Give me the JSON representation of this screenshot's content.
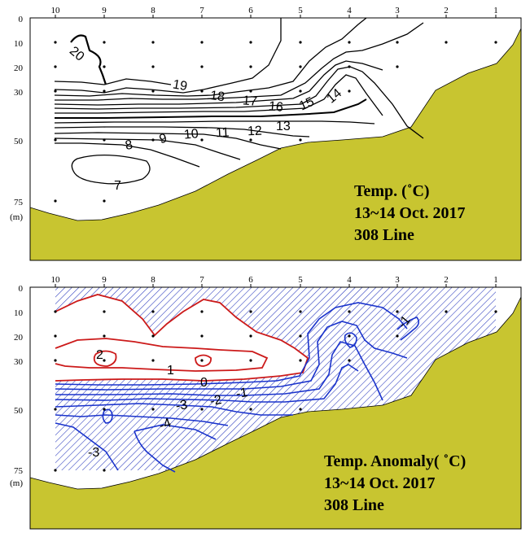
{
  "chart_data": [
    {
      "type": "contour",
      "title": "Temp. (˚C)",
      "date": "13~14 Oct. 2017",
      "line": "308 Line",
      "stations": [
        "10",
        "9",
        "8",
        "7",
        "6",
        "5",
        "4",
        "3",
        "2",
        "1"
      ],
      "depth_ticks": [
        "0",
        "10",
        "20",
        "30",
        "50",
        "75"
      ],
      "depth_unit": "(m)",
      "contour_levels": [
        "20",
        "19",
        "18",
        "17",
        "16",
        "15",
        "14",
        "13",
        "12",
        "11",
        "10",
        "9",
        "8",
        "7"
      ],
      "colors": {
        "bathymetry": "#c8c530",
        "contour": "#000000"
      }
    },
    {
      "type": "contour",
      "title": "Temp. Anomaly( ˚C)",
      "date": "13~14 Oct. 2017",
      "line": "308 Line",
      "stations": [
        "10",
        "9",
        "8",
        "7",
        "6",
        "5",
        "4",
        "3",
        "2",
        "1"
      ],
      "depth_ticks": [
        "0",
        "10",
        "20",
        "30",
        "50",
        "75"
      ],
      "depth_unit": "(m)",
      "contour_levels": [
        "2",
        "1",
        "0",
        "-1",
        "-2",
        "-3",
        "-4",
        "-3",
        "-1"
      ],
      "colors": {
        "bathymetry": "#c8c530",
        "positive": "#cc1a1a",
        "negative": "#1a33cc",
        "hatch": "#2233bb"
      }
    }
  ]
}
